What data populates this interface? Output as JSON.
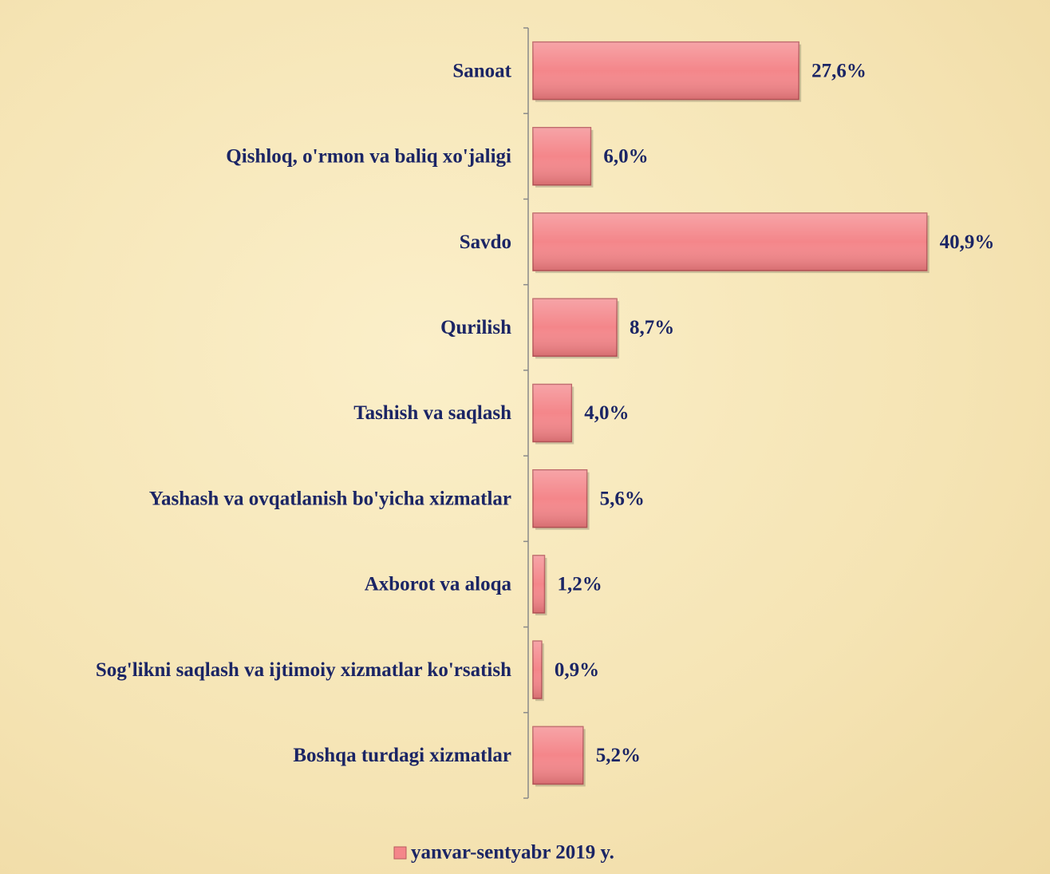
{
  "chart_data": {
    "type": "bar",
    "orientation": "horizontal",
    "categories": [
      "Sanoat",
      "Qishloq, o'rmon va baliq xo'jaligi",
      "Savdo",
      "Qurilish",
      "Tashish va saqlash",
      "Yashash va ovqatlanish bo'yicha xizmatlar",
      "Axborot va aloqa",
      "Sog'likni saqlash va ijtimoiy xizmatlar ko'rsatish",
      "Boshqa turdagi xizmatlar"
    ],
    "series": [
      {
        "name": "yanvar-sentyabr 2019 y.",
        "color": "#f4868a",
        "values": [
          27.6,
          6.0,
          40.9,
          8.7,
          4.0,
          5.6,
          1.2,
          0.9,
          5.2
        ],
        "value_labels": [
          "27,6%",
          "6,0%",
          "40,9%",
          "8,7%",
          "4,0%",
          "5,6%",
          "1,2%",
          "0,9%",
          "5,2%"
        ]
      }
    ],
    "legend": "bottom"
  }
}
